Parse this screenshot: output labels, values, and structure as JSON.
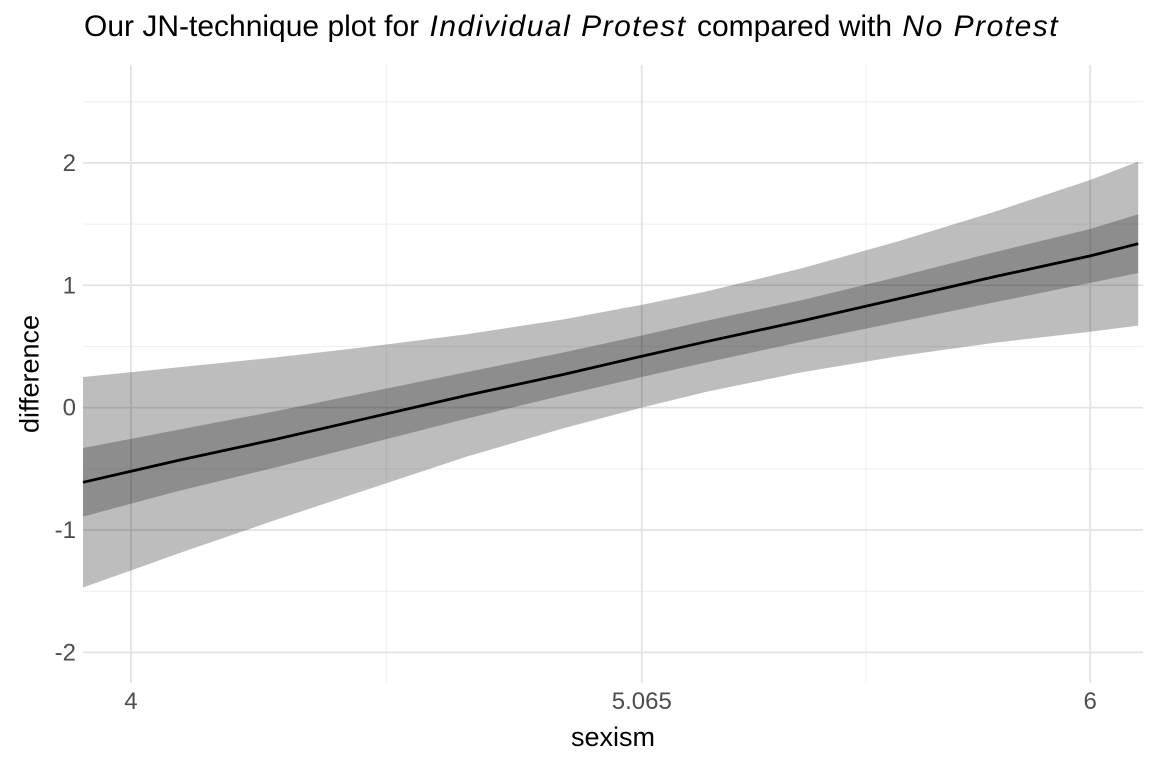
{
  "chart_data": {
    "type": "line",
    "title": {
      "pre": "Our JN-technique plot for ",
      "italic_1": "Individual Protest",
      "mid": " compared with ",
      "italic_2": "No Protest"
    },
    "xlabel": "sexism",
    "ylabel": "difference",
    "xlim": [
      3.9,
      6.11
    ],
    "ylim": [
      -2.25,
      2.8
    ],
    "x_ticks": [
      {
        "value": 4,
        "label": "4"
      },
      {
        "value": 5.065,
        "label": "5.065"
      },
      {
        "value": 6,
        "label": "6"
      }
    ],
    "y_ticks": [
      {
        "value": -2,
        "label": "-2"
      },
      {
        "value": -1,
        "label": "-1"
      },
      {
        "value": 0,
        "label": "0"
      },
      {
        "value": 1,
        "label": "1"
      },
      {
        "value": 2,
        "label": "2"
      }
    ],
    "x_minor": [
      4.5325,
      5.5325
    ],
    "y_minor": [
      -1.5,
      -0.5,
      0.5,
      1.5,
      2.5
    ],
    "grid": true,
    "legend": "none",
    "jn_point": 5.065,
    "x": [
      3.9,
      4.1,
      4.3,
      4.5,
      4.7,
      4.9,
      5.065,
      5.2,
      5.4,
      5.6,
      5.8,
      6.0,
      6.1
    ],
    "series": [
      {
        "name": "difference",
        "role": "line",
        "values": [
          -0.61,
          -0.43,
          -0.26,
          -0.08,
          0.1,
          0.27,
          0.42,
          0.54,
          0.71,
          0.89,
          1.07,
          1.24,
          1.34
        ]
      },
      {
        "name": "inner-confidence-band",
        "role": "ribbon",
        "low": [
          -0.89,
          -0.68,
          -0.49,
          -0.29,
          -0.09,
          0.1,
          0.25,
          0.37,
          0.54,
          0.7,
          0.86,
          1.02,
          1.1
        ],
        "high": [
          -0.33,
          -0.18,
          -0.03,
          0.13,
          0.29,
          0.45,
          0.59,
          0.71,
          0.88,
          1.07,
          1.27,
          1.46,
          1.58
        ]
      },
      {
        "name": "outer-confidence-band",
        "role": "ribbon",
        "low": [
          -1.47,
          -1.19,
          -0.92,
          -0.66,
          -0.4,
          -0.17,
          0.0,
          0.13,
          0.29,
          0.42,
          0.53,
          0.62,
          0.67
        ],
        "high": [
          0.25,
          0.33,
          0.41,
          0.5,
          0.6,
          0.72,
          0.84,
          0.95,
          1.14,
          1.36,
          1.6,
          1.86,
          2.01
        ]
      }
    ],
    "colors": {
      "line": "#000000",
      "inner_band": "rgba(0,0,0,0.25)",
      "outer_band": "rgba(0,0,0,0.26)",
      "grid_major": "#e3e3e3",
      "grid_minor": "#f1f1f1",
      "tick_label": "#4d4d4d",
      "title_text": "#000000",
      "background": "#ffffff"
    }
  }
}
